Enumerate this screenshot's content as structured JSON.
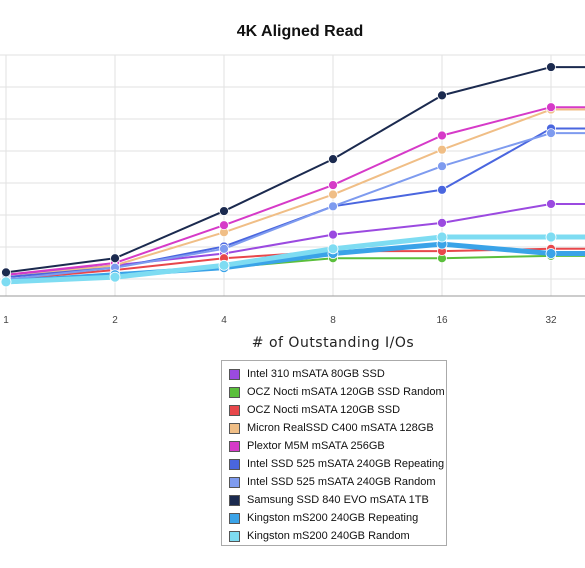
{
  "chart_data": {
    "type": "line",
    "title": "4K Aligned Read",
    "xlabel": "# of Outstanding I/Os",
    "ylabel": "",
    "x": [
      1,
      2,
      4,
      8,
      16,
      32
    ],
    "xscale": "log2",
    "ylim": [
      0,
      100
    ],
    "grid": true,
    "legend_position": "bottom",
    "series": [
      {
        "name": "Intel 310 mSATA 80GB SSD",
        "color": "#9b4ae0",
        "values": [
          9,
          13,
          18,
          26,
          31,
          39
        ]
      },
      {
        "name": "OCZ Nocti mSATA 120GB SSD Random",
        "color": "#5bbf3c",
        "values": [
          6,
          9,
          12,
          16,
          16,
          17
        ]
      },
      {
        "name": "OCZ Nocti mSATA 120GB SSD",
        "color": "#e8474b",
        "values": [
          7,
          11,
          16,
          19,
          19,
          20
        ]
      },
      {
        "name": "Micron RealSSD C400 mSATA 128GB",
        "color": "#f0be86",
        "values": [
          8,
          13,
          27,
          43,
          62,
          79
        ]
      },
      {
        "name": "Plextor M5M mSATA 256GB",
        "color": "#d63ac8",
        "values": [
          9,
          14,
          30,
          47,
          68,
          80
        ]
      },
      {
        "name": "Intel SSD 525 mSATA 240GB Repeating",
        "color": "#4a66df",
        "values": [
          8,
          12,
          21,
          38,
          45,
          71
        ]
      },
      {
        "name": "Intel SSD 525 mSATA 240GB Random",
        "color": "#7e9bef",
        "values": [
          7,
          12,
          20,
          38,
          55,
          69
        ]
      },
      {
        "name": "Samsung SSD 840 EVO mSATA 1TB",
        "color": "#1b2a4f",
        "values": [
          10,
          16,
          36,
          58,
          85,
          97
        ]
      },
      {
        "name": "Kingston mS200 240GB Repeating",
        "color": "#3aa3e8",
        "values": [
          6,
          9,
          12,
          18,
          22,
          18
        ]
      },
      {
        "name": "Kingston mS200 240GB Random",
        "color": "#7edcf2",
        "values": [
          6,
          8,
          13,
          20,
          25,
          25
        ]
      }
    ]
  }
}
